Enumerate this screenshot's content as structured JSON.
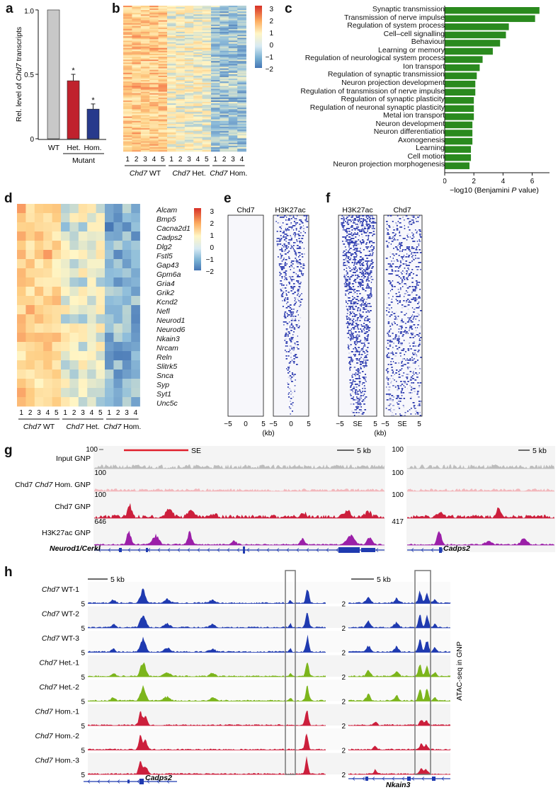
{
  "panel_labels": {
    "a": "a",
    "b": "b",
    "c": "c",
    "d": "d",
    "e": "e",
    "f": "f",
    "g": "g",
    "h": "h"
  },
  "panel_a": {
    "chart_data": {
      "type": "bar",
      "categories": [
        "WT",
        "Het.",
        "Hom."
      ],
      "values": [
        1.0,
        0.45,
        0.23
      ],
      "errors": [
        0,
        0.05,
        0.04
      ],
      "colors": [
        "#c8c8c8",
        "#c0222d",
        "#273a8c"
      ],
      "significance": [
        "",
        "*",
        "*"
      ],
      "ylabel_pre": "Rel. level of ",
      "ylabel_it": "Chd7",
      "ylabel_post": " transcripts",
      "yticks": [
        "0",
        "0.5",
        "1.0"
      ],
      "ylim": [
        0,
        1.0
      ],
      "group_label": "Mutant"
    }
  },
  "panel_b": {
    "samples": [
      "1",
      "2",
      "3",
      "4",
      "5",
      "1",
      "2",
      "3",
      "4",
      "5",
      "1",
      "2",
      "3",
      "4"
    ],
    "groups": [
      {
        "it": "Chd7",
        "rest": " WT"
      },
      {
        "it": "Chd7",
        "rest": " Het."
      },
      {
        "it": "Chd7",
        "rest": " Hom."
      }
    ],
    "legend": [
      "3",
      "2",
      "1",
      "0",
      "−1",
      "−2"
    ]
  },
  "panel_c": {
    "chart_data": {
      "type": "bar",
      "orientation": "horizontal",
      "categories": [
        "Synaptic transmission",
        "Transmission of nerve impulse",
        "Regulation of system process",
        "Cell–cell signalling",
        "Behaviour",
        "Learning or memory",
        "Regulation of neurological system process",
        "Ion transport",
        "Regulation of synaptic transmission",
        "Neuron projection development",
        "Regulation of transmission of nerve impulse",
        "Regulation of synaptic plasticity",
        "Regulation of neuronal synaptic plasticity",
        "Metal ion transport",
        "Neuron development",
        "Neuron differentiation",
        "Axonogenesis",
        "Learning",
        "Cell motion",
        "Neuron projection morphogenesis"
      ],
      "values": [
        6.5,
        6.2,
        4.4,
        4.2,
        3.8,
        3.3,
        2.6,
        2.4,
        2.2,
        2.1,
        2.1,
        2.0,
        2.0,
        2.0,
        1.9,
        1.9,
        1.9,
        1.8,
        1.8,
        1.7
      ],
      "color": "#2a8a1e",
      "xticks": [
        "0",
        "2",
        "4",
        "6"
      ],
      "xlim": [
        0,
        6.8
      ],
      "xlabel_pre": "−log10 (Benjamini ",
      "xlabel_it": "P",
      "xlabel_post": " value)"
    }
  },
  "panel_d": {
    "genes": [
      "Alcam",
      "Bmp5",
      "Cacna2d1",
      "Cadps2",
      "Dlg2",
      "Fstl5",
      "Gap43",
      "Gpm6a",
      "Gria4",
      "Grik2",
      "Kcnd2",
      "Nefl",
      "Neurod1",
      "Neurod6",
      "Nkain3",
      "Nrcam",
      "Reln",
      "Slitrk5",
      "Snca",
      "Syp",
      "Syt1",
      "Unc5c"
    ],
    "samples": [
      "1",
      "2",
      "3",
      "4",
      "5",
      "1",
      "2",
      "3",
      "4",
      "5",
      "1",
      "2",
      "3",
      "4"
    ],
    "groups": [
      {
        "it": "Chd7",
        "rest": " WT"
      },
      {
        "it": "Chd7",
        "rest": " Het."
      },
      {
        "it": "Chd7",
        "rest": " Hom."
      }
    ],
    "legend": [
      "3",
      "2",
      "1",
      "0",
      "−1",
      "−2"
    ]
  },
  "panel_e": {
    "titles": [
      "Chd7",
      "H3K27ac"
    ],
    "ticks": [
      "−5",
      "0",
      "5",
      "−5",
      "0",
      "5"
    ],
    "unit": "(kb)"
  },
  "panel_f": {
    "titles": [
      "H3K27ac",
      "Chd7"
    ],
    "ticks": [
      "−5",
      "SE",
      "5",
      "−5",
      "SE",
      "5"
    ],
    "unit": "(kb)"
  },
  "panel_g": {
    "tracks": [
      {
        "label": "Input GNP",
        "scale": "100",
        "color": "#bdbdbd"
      },
      {
        "label_it": "Chd7",
        "label": "Chd7 ",
        "label_post": " Hom. GNP",
        "scale": "100",
        "color": "#f2b8bd"
      },
      {
        "label": "Chd7 GNP",
        "scale": "100",
        "color": "#cc1f3c"
      },
      {
        "label": "H3K27ac GNP",
        "scale": "646",
        "color": "#9b1fa8"
      }
    ],
    "right_scales": [
      "100",
      "100",
      "100",
      "417"
    ],
    "se_label": "SE",
    "scalebar": "5 kb",
    "scalebar_right": "5 kb",
    "gene_left": "Neurod1/Cerkl",
    "gene_right": "Cadps2"
  },
  "panel_h": {
    "tracks": [
      {
        "it": "Chd7",
        "rest": " WT-1",
        "color": "#1f3ab0"
      },
      {
        "it": "Chd7",
        "rest": " WT-2",
        "color": "#1f3ab0"
      },
      {
        "it": "Chd7",
        "rest": " WT-3",
        "color": "#1f3ab0"
      },
      {
        "it": "Chd7",
        "rest": " Het.-1",
        "color": "#7cb51c"
      },
      {
        "it": "Chd7",
        "rest": " Het.-2",
        "color": "#7cb51c"
      },
      {
        "it": "Chd7",
        "rest": " Hom.-1",
        "color": "#cc1f3c"
      },
      {
        "it": "Chd7",
        "rest": " Hom.-2",
        "color": "#cc1f3c"
      },
      {
        "it": "Chd7",
        "rest": " Hom.-3",
        "color": "#cc1f3c"
      }
    ],
    "left_scale": "5",
    "right_scale": "2",
    "scalebar": "5 kb",
    "scalebar_right": "5 kb",
    "gene_left": "Cadps2",
    "gene_right": "Nkain3",
    "side_label": "ATAC-seq in GNP"
  }
}
